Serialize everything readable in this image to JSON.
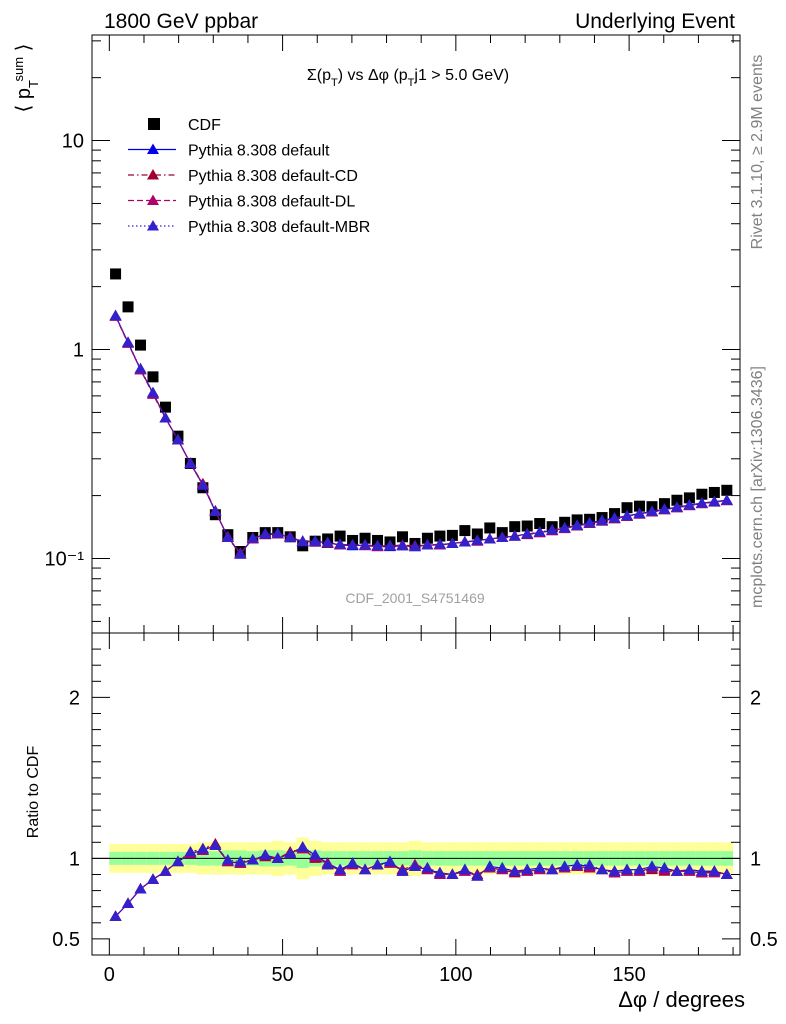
{
  "header": {
    "left": "1800 GeV ppbar",
    "right": "Underlying Event"
  },
  "side_labels": {
    "rivet": "Rivet 3.1.10, ≥ 2.9M events",
    "mcplots": "mcplots.cern.ch [arXiv:1306.3436]"
  },
  "watermark": "CDF_2001_S4751469",
  "chart_data": {
    "type": "line",
    "title": "Σ(p_T) vs Δφ (p_Tj1 > 5.0 GeV)",
    "xlabel": "Δφ / degrees",
    "ylabel": "⟨ p_T^sum ⟩",
    "ratio_ylabel": "Ratio to CDF",
    "xlim": [
      -5,
      182
    ],
    "ylim": [
      0.044,
      32
    ],
    "yscale": "log",
    "ratio_ylim": [
      0.4,
      2.4
    ],
    "x_ticks": [
      0,
      50,
      100,
      150
    ],
    "y_ticks": [
      {
        "value": 0.1,
        "label": "10⁻¹"
      },
      {
        "value": 1,
        "label": "1"
      },
      {
        "value": 10,
        "label": "10"
      }
    ],
    "ratio_ticks": [
      {
        "value": 0.5,
        "label": "0.5"
      },
      {
        "value": 1,
        "label": "1"
      },
      {
        "value": 2,
        "label": "2"
      }
    ],
    "legend_position": "top-left",
    "x": [
      1.8,
      5.4,
      9.0,
      12.6,
      16.2,
      19.8,
      23.4,
      27.0,
      30.6,
      34.2,
      37.8,
      41.4,
      45.0,
      48.6,
      52.2,
      55.8,
      59.4,
      63.0,
      66.6,
      70.2,
      73.8,
      77.4,
      81.0,
      84.6,
      88.2,
      91.8,
      95.4,
      99.0,
      102.6,
      106.2,
      109.8,
      113.4,
      117.0,
      120.6,
      124.2,
      127.8,
      131.4,
      135.0,
      138.6,
      142.2,
      145.8,
      149.4,
      153.0,
      156.6,
      160.2,
      163.8,
      167.4,
      171.0,
      174.6,
      178.2
    ],
    "series": [
      {
        "name": "CDF",
        "color": "#000000",
        "marker": "square",
        "values": [
          2.3,
          1.6,
          1.05,
          0.74,
          0.53,
          0.385,
          0.285,
          0.218,
          0.162,
          0.13,
          0.108,
          0.126,
          0.133,
          0.133,
          0.127,
          0.115,
          0.121,
          0.124,
          0.128,
          0.122,
          0.125,
          0.122,
          0.12,
          0.127,
          0.118,
          0.125,
          0.128,
          0.129,
          0.136,
          0.131,
          0.14,
          0.133,
          0.142,
          0.143,
          0.147,
          0.142,
          0.149,
          0.153,
          0.154,
          0.157,
          0.164,
          0.175,
          0.178,
          0.177,
          0.183,
          0.19,
          0.195,
          0.203,
          0.207,
          0.212
        ],
        "ratio": [
          1,
          1,
          1,
          1,
          1,
          1,
          1,
          1,
          1,
          1,
          1,
          1,
          1,
          1,
          1,
          1,
          1,
          1,
          1,
          1,
          1,
          1,
          1,
          1,
          1,
          1,
          1,
          1,
          1,
          1,
          1,
          1,
          1,
          1,
          1,
          1,
          1,
          1,
          1,
          1,
          1,
          1,
          1,
          1,
          1,
          1,
          1,
          1,
          1,
          1
        ]
      },
      {
        "name": "Pythia 8.308 default",
        "color": "#0000ee",
        "marker": "triangle",
        "dash": "",
        "values": [
          1.45,
          1.08,
          0.8,
          0.62,
          0.47,
          0.37,
          0.285,
          0.225,
          0.168,
          0.127,
          0.105,
          0.125,
          0.13,
          0.131,
          0.126,
          0.12,
          0.121,
          0.119,
          0.116,
          0.115,
          0.116,
          0.114,
          0.114,
          0.115,
          0.114,
          0.116,
          0.116,
          0.118,
          0.12,
          0.122,
          0.124,
          0.126,
          0.128,
          0.131,
          0.133,
          0.136,
          0.14,
          0.144,
          0.148,
          0.152,
          0.156,
          0.16,
          0.164,
          0.168,
          0.172,
          0.176,
          0.18,
          0.184,
          0.187,
          0.19
        ],
        "ratio": [
          0.64,
          0.72,
          0.81,
          0.87,
          0.92,
          0.98,
          1.03,
          1.05,
          1.08,
          0.98,
          0.97,
          0.99,
          1.02,
          1.0,
          1.03,
          1.07,
          1.02,
          0.97,
          0.93,
          0.97,
          0.93,
          0.96,
          0.98,
          0.92,
          0.95,
          0.93,
          0.91,
          0.9,
          0.93,
          0.89,
          0.95,
          0.94,
          0.92,
          0.93,
          0.94,
          0.93,
          0.95,
          0.96,
          0.95,
          0.93,
          0.92,
          0.93,
          0.93,
          0.95,
          0.94,
          0.92,
          0.93,
          0.92,
          0.92,
          0.9
        ]
      },
      {
        "name": "Pythia 8.308 default-CD",
        "color": "#a00030",
        "marker": "triangle",
        "dash": "6,3,1.5,3",
        "values": [
          1.45,
          1.08,
          0.8,
          0.62,
          0.47,
          0.37,
          0.285,
          0.228,
          0.169,
          0.126,
          0.105,
          0.125,
          0.13,
          0.131,
          0.127,
          0.121,
          0.121,
          0.118,
          0.117,
          0.116,
          0.116,
          0.115,
          0.115,
          0.116,
          0.115,
          0.116,
          0.117,
          0.118,
          0.12,
          0.122,
          0.124,
          0.126,
          0.128,
          0.13,
          0.133,
          0.136,
          0.14,
          0.143,
          0.147,
          0.151,
          0.155,
          0.159,
          0.163,
          0.167,
          0.171,
          0.175,
          0.179,
          0.183,
          0.187,
          0.19
        ],
        "ratio": [
          0.64,
          0.72,
          0.81,
          0.87,
          0.92,
          0.98,
          1.04,
          1.06,
          1.09,
          0.98,
          0.97,
          0.99,
          1.01,
          1.0,
          1.04,
          1.06,
          1.0,
          0.96,
          0.92,
          0.97,
          0.93,
          0.96,
          0.97,
          0.93,
          0.96,
          0.94,
          0.91,
          0.9,
          0.92,
          0.9,
          0.94,
          0.93,
          0.91,
          0.92,
          0.93,
          0.93,
          0.94,
          0.95,
          0.94,
          0.93,
          0.91,
          0.92,
          0.92,
          0.93,
          0.92,
          0.92,
          0.92,
          0.91,
          0.92,
          0.9
        ]
      },
      {
        "name": "Pythia 8.308 default-DL",
        "color": "#b0006a",
        "marker": "triangle",
        "dash": "6,3",
        "values": [
          1.44,
          1.07,
          0.8,
          0.61,
          0.47,
          0.37,
          0.286,
          0.226,
          0.168,
          0.127,
          0.106,
          0.124,
          0.131,
          0.131,
          0.126,
          0.121,
          0.12,
          0.119,
          0.116,
          0.116,
          0.115,
          0.114,
          0.115,
          0.115,
          0.114,
          0.116,
          0.116,
          0.118,
          0.12,
          0.121,
          0.124,
          0.126,
          0.128,
          0.131,
          0.133,
          0.136,
          0.139,
          0.143,
          0.147,
          0.151,
          0.155,
          0.159,
          0.163,
          0.167,
          0.171,
          0.175,
          0.179,
          0.183,
          0.186,
          0.189
        ],
        "ratio": [
          0.64,
          0.72,
          0.81,
          0.87,
          0.92,
          0.98,
          1.03,
          1.05,
          1.08,
          0.98,
          0.97,
          0.99,
          1.02,
          1.0,
          1.03,
          1.06,
          1.01,
          0.97,
          0.92,
          0.96,
          0.93,
          0.96,
          0.97,
          0.92,
          0.96,
          0.93,
          0.9,
          0.9,
          0.92,
          0.89,
          0.94,
          0.93,
          0.92,
          0.92,
          0.93,
          0.93,
          0.94,
          0.95,
          0.94,
          0.93,
          0.91,
          0.92,
          0.92,
          0.94,
          0.93,
          0.92,
          0.92,
          0.91,
          0.91,
          0.9
        ]
      },
      {
        "name": "Pythia 8.308 default-MBR",
        "color": "#3322cc",
        "marker": "triangle",
        "dash": "1.5,2.5",
        "values": [
          1.45,
          1.08,
          0.81,
          0.62,
          0.47,
          0.37,
          0.285,
          0.224,
          0.168,
          0.126,
          0.105,
          0.125,
          0.131,
          0.132,
          0.126,
          0.121,
          0.121,
          0.119,
          0.117,
          0.116,
          0.116,
          0.115,
          0.115,
          0.115,
          0.114,
          0.116,
          0.117,
          0.118,
          0.12,
          0.122,
          0.124,
          0.126,
          0.128,
          0.131,
          0.134,
          0.137,
          0.14,
          0.144,
          0.148,
          0.152,
          0.156,
          0.16,
          0.164,
          0.168,
          0.172,
          0.176,
          0.18,
          0.184,
          0.187,
          0.19
        ],
        "ratio": [
          0.64,
          0.72,
          0.81,
          0.87,
          0.92,
          0.98,
          1.04,
          1.06,
          1.08,
          0.99,
          0.98,
          0.99,
          1.02,
          1.0,
          1.03,
          1.07,
          1.02,
          0.96,
          0.93,
          0.97,
          0.93,
          0.96,
          0.98,
          0.92,
          0.95,
          0.94,
          0.91,
          0.9,
          0.93,
          0.89,
          0.95,
          0.94,
          0.92,
          0.93,
          0.94,
          0.93,
          0.95,
          0.96,
          0.96,
          0.93,
          0.92,
          0.93,
          0.93,
          0.95,
          0.94,
          0.92,
          0.93,
          0.92,
          0.92,
          0.9
        ]
      }
    ],
    "uncertainty_band": {
      "inner_color": "#99ff99",
      "outer_color": "#ffff99",
      "inner_halfwidth": [
        0.04,
        0.04,
        0.04,
        0.04,
        0.04,
        0.04,
        0.04,
        0.045,
        0.045,
        0.05,
        0.05,
        0.045,
        0.05,
        0.05,
        0.045,
        0.06,
        0.05,
        0.045,
        0.045,
        0.045,
        0.045,
        0.045,
        0.045,
        0.045,
        0.05,
        0.045,
        0.045,
        0.045,
        0.045,
        0.045,
        0.045,
        0.045,
        0.045,
        0.045,
        0.045,
        0.045,
        0.045,
        0.045,
        0.045,
        0.045,
        0.045,
        0.045,
        0.045,
        0.045,
        0.045,
        0.045,
        0.045,
        0.045,
        0.045,
        0.045
      ],
      "outer_halfwidth": [
        0.09,
        0.09,
        0.09,
        0.09,
        0.09,
        0.09,
        0.09,
        0.1,
        0.1,
        0.1,
        0.1,
        0.1,
        0.1,
        0.11,
        0.1,
        0.13,
        0.11,
        0.1,
        0.1,
        0.1,
        0.1,
        0.1,
        0.1,
        0.1,
        0.11,
        0.1,
        0.1,
        0.1,
        0.1,
        0.1,
        0.1,
        0.1,
        0.1,
        0.1,
        0.1,
        0.1,
        0.1,
        0.1,
        0.1,
        0.1,
        0.1,
        0.1,
        0.1,
        0.1,
        0.1,
        0.1,
        0.1,
        0.1,
        0.1,
        0.1
      ]
    }
  }
}
